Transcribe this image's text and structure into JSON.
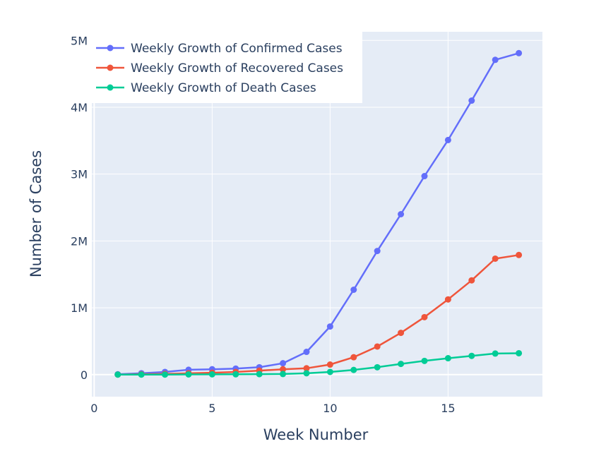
{
  "chart_data": {
    "type": "line",
    "xlabel": "Week Number",
    "ylabel": "Number of Cases",
    "xlim": [
      -0.1,
      19
    ],
    "ylim": [
      -330000,
      5130000
    ],
    "x_ticks": [
      0,
      5,
      10,
      15
    ],
    "x_tick_labels": [
      "0",
      "5",
      "10",
      "15"
    ],
    "y_ticks": [
      0,
      1000000,
      2000000,
      3000000,
      4000000,
      5000000
    ],
    "y_tick_labels": [
      "0",
      "1M",
      "2M",
      "3M",
      "4M",
      "5M"
    ],
    "grid": true,
    "legend_position": "top-left",
    "x": [
      1,
      2,
      3,
      4,
      5,
      6,
      7,
      8,
      9,
      10,
      11,
      12,
      13,
      14,
      15,
      16,
      17,
      18
    ],
    "series": [
      {
        "name": "Weekly Growth of Confirmed Cases",
        "color": "#636efa",
        "values": [
          5000,
          20000,
          40000,
          72000,
          80000,
          90000,
          110000,
          170000,
          340000,
          720000,
          1270000,
          1850000,
          2400000,
          2970000,
          3510000,
          4100000,
          4710000,
          4810000
        ]
      },
      {
        "name": "Weekly Growth of Recovered Cases",
        "color": "#ef553b",
        "values": [
          0,
          5000,
          10000,
          20000,
          28000,
          40000,
          60000,
          80000,
          95000,
          150000,
          260000,
          420000,
          625000,
          860000,
          1125000,
          1410000,
          1735000,
          1790000
        ]
      },
      {
        "name": "Weekly Growth of Death Cases",
        "color": "#00cc96",
        "values": [
          0,
          0,
          0,
          3000,
          4000,
          5000,
          7000,
          9000,
          20000,
          40000,
          70000,
          110000,
          160000,
          205000,
          245000,
          280000,
          315000,
          320000
        ]
      }
    ]
  }
}
